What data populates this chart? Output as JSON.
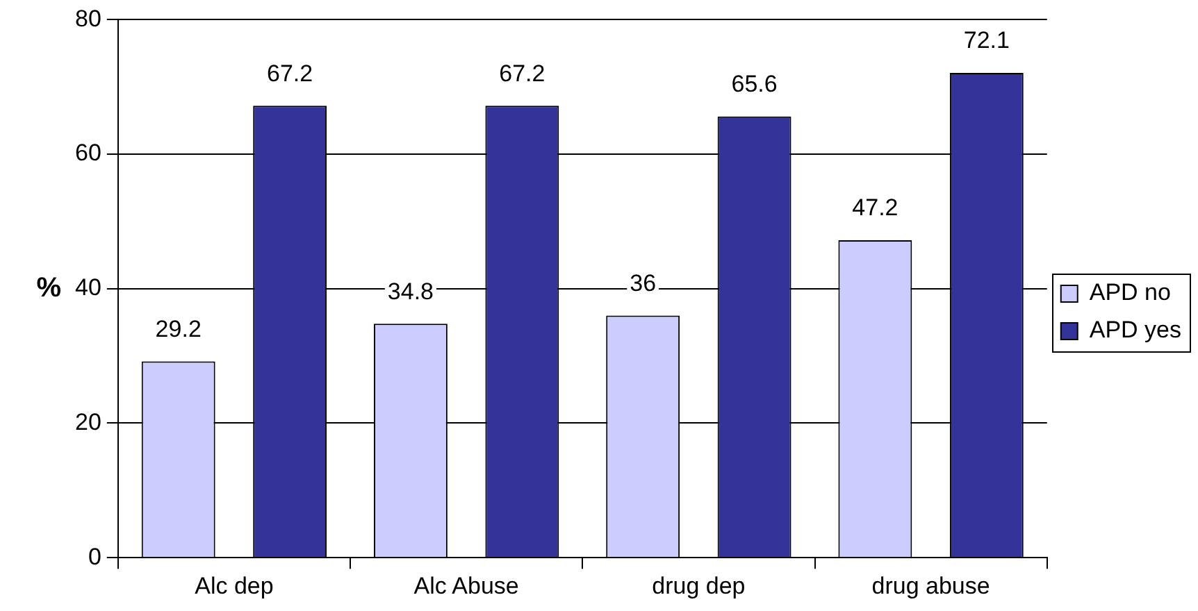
{
  "chart_data": {
    "type": "bar",
    "ylabel": "%",
    "categories": [
      "Alc dep",
      "Alc Abuse",
      "drug dep",
      "drug abuse"
    ],
    "series": [
      {
        "name": "APD no",
        "color": "#ccccff",
        "values": [
          29.2,
          34.8,
          36,
          47.2
        ]
      },
      {
        "name": "APD yes",
        "color": "#333399",
        "values": [
          67.2,
          67.2,
          65.6,
          72.1
        ]
      }
    ],
    "ylim": [
      0,
      80
    ],
    "yticks": [
      0,
      20,
      40,
      60,
      80
    ],
    "grid": "y",
    "legend": "right",
    "data_labels": true
  }
}
